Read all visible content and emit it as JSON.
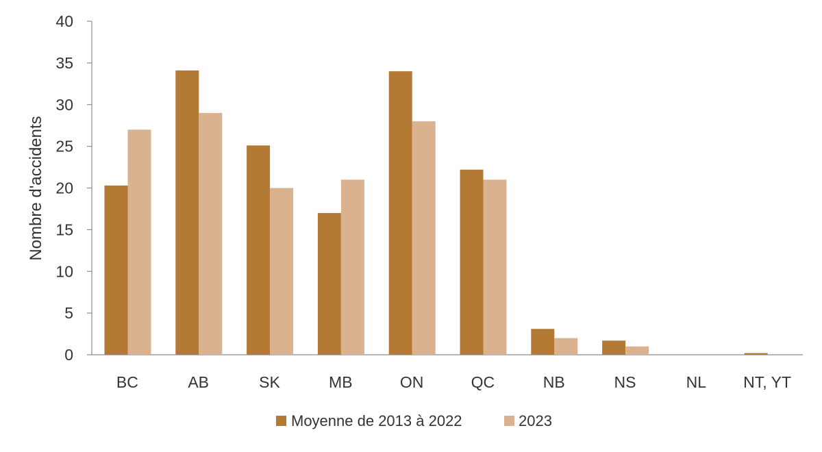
{
  "chart_data": {
    "type": "bar",
    "title": "",
    "xlabel": "",
    "ylabel": "Nombre d'accidents",
    "ylim": [
      0,
      40
    ],
    "yticks": [
      0,
      5,
      10,
      15,
      20,
      25,
      30,
      35,
      40
    ],
    "grid": false,
    "legend_position": "bottom-center",
    "categories": [
      "BC",
      "AB",
      "SK",
      "MB",
      "ON",
      "QC",
      "NB",
      "NS",
      "NL",
      "NT, YT"
    ],
    "series": [
      {
        "name": "Moyenne de 2013 à 2022",
        "color": "#b37a35",
        "values": [
          20.3,
          34.1,
          25.1,
          17.0,
          34.0,
          22.2,
          3.1,
          1.7,
          0,
          0.2
        ]
      },
      {
        "name": "2023",
        "color": "#dbb28f",
        "values": [
          27,
          29,
          20,
          21,
          28,
          21,
          2,
          1,
          0,
          0
        ]
      }
    ]
  }
}
